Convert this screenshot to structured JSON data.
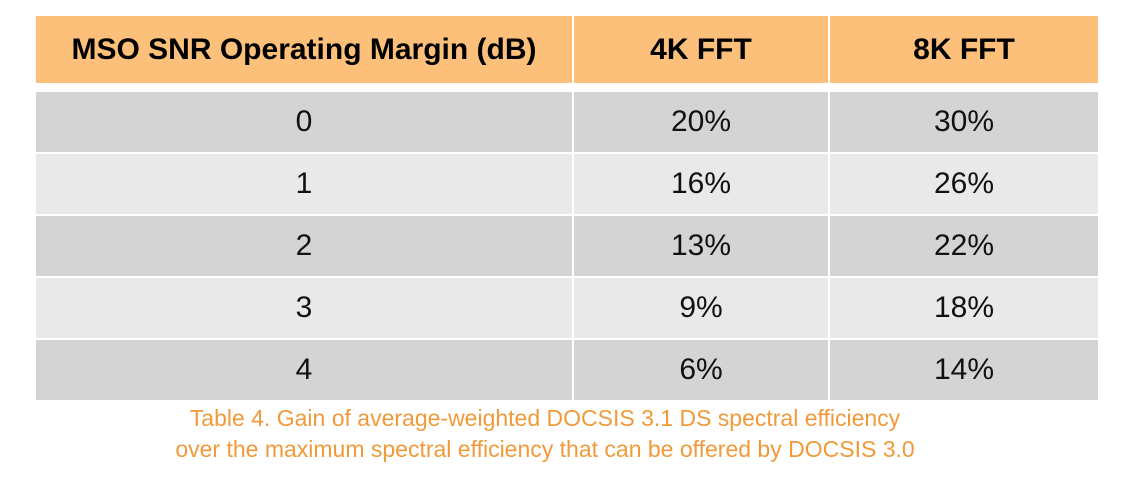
{
  "table": {
    "headers": [
      "MSO SNR Operating Margin (dB)",
      "4K FFT",
      "8K FFT"
    ],
    "rows": [
      [
        "0",
        "20%",
        "30%"
      ],
      [
        "1",
        "16%",
        "26%"
      ],
      [
        "2",
        "13%",
        "22%"
      ],
      [
        "3",
        "9%",
        "18%"
      ],
      [
        "4",
        "6%",
        "14%"
      ]
    ]
  },
  "caption": {
    "line1": "Table 4. Gain of average-weighted DOCSIS 3.1 DS spectral efficiency",
    "line2": "over the maximum spectral efficiency that can be offered by DOCSIS 3.0"
  },
  "colors": {
    "header_bg": "#fcc07a",
    "row_dark": "#d4d4d4",
    "row_light": "#e9e9e9",
    "caption_text": "#f09a3a"
  }
}
